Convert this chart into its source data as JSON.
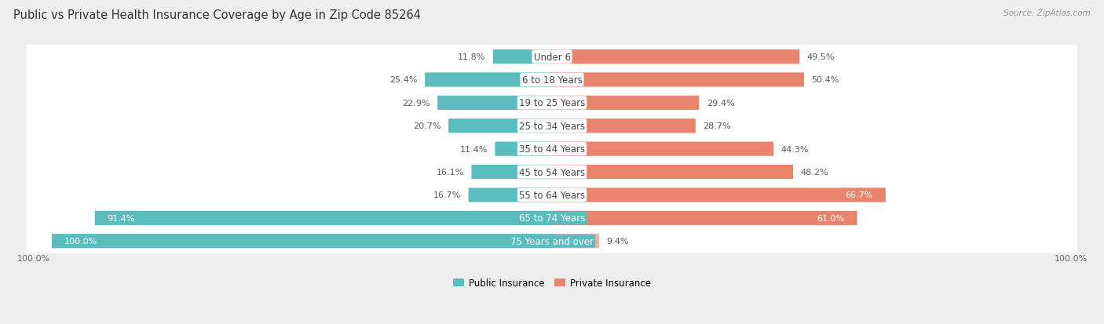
{
  "title": "Public vs Private Health Insurance Coverage by Age in Zip Code 85264",
  "source": "Source: ZipAtlas.com",
  "categories": [
    "Under 6",
    "6 to 18 Years",
    "19 to 25 Years",
    "25 to 34 Years",
    "35 to 44 Years",
    "45 to 54 Years",
    "55 to 64 Years",
    "65 to 74 Years",
    "75 Years and over"
  ],
  "public_values": [
    11.8,
    25.4,
    22.9,
    20.7,
    11.4,
    16.1,
    16.7,
    91.4,
    100.0
  ],
  "private_values": [
    49.5,
    50.4,
    29.4,
    28.7,
    44.3,
    48.2,
    66.7,
    61.0,
    9.4
  ],
  "public_color": "#5bbcbe",
  "private_color_dark": "#e8846e",
  "private_color_light": "#f0b0a0",
  "background_color": "#eeeeee",
  "row_bg_color": "#f7f7f7",
  "row_alt_color": "#ffffff",
  "title_fontsize": 10.5,
  "label_fontsize": 8.5,
  "value_fontsize": 8.0,
  "legend_fontsize": 8.5,
  "x_left_label": "100.0%",
  "x_right_label": "100.0%",
  "scale": 100
}
